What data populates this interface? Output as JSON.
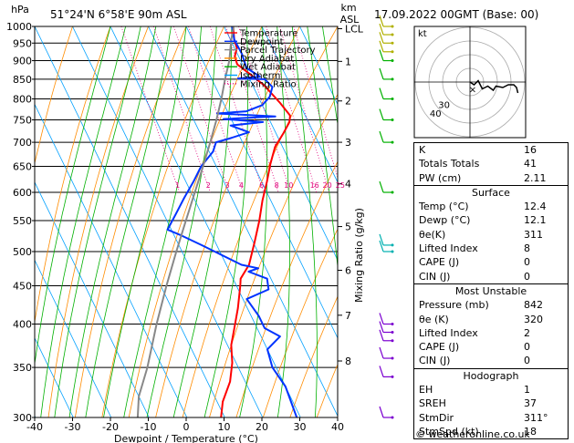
{
  "header": {
    "location": "51°24'N  6°58'E  90m  ASL",
    "datetime": "17.09.2022  00GMT  (Base: 00)",
    "pressure_unit": "hPa",
    "height_unit_top": "km",
    "height_unit_bottom": "ASL"
  },
  "legend": [
    {
      "label": "Temperature",
      "color": "#ff0000",
      "dash": ""
    },
    {
      "label": "Dewpoint",
      "color": "#0033ff",
      "dash": ""
    },
    {
      "label": "Parcel Trajectory",
      "color": "#888888",
      "dash": ""
    },
    {
      "label": "Dry Adiabat",
      "color": "#ff8c00",
      "dash": ""
    },
    {
      "label": "Wet Adiabat",
      "color": "#00b000",
      "dash": ""
    },
    {
      "label": "Isotherm",
      "color": "#00a0ff",
      "dash": ""
    },
    {
      "label": "Mixing Ratio",
      "color": "#e0007a",
      "dash": "1,2"
    }
  ],
  "chart_data": {
    "type": "line",
    "xlabel": "Dewpoint / Temperature (°C)",
    "ylabel": "hPa",
    "right_label": "Mixing Ratio (g/kg)",
    "xlim": [
      -40,
      40
    ],
    "ylim": [
      1000,
      300
    ],
    "y_log": true,
    "x_ticks": [
      -40,
      -30,
      -20,
      -10,
      0,
      10,
      20,
      30,
      40
    ],
    "pressure_levels": [
      300,
      350,
      400,
      450,
      500,
      550,
      600,
      650,
      700,
      750,
      800,
      850,
      900,
      950,
      1000
    ],
    "height_km": [
      {
        "km": "8",
        "p": 357
      },
      {
        "km": "7",
        "p": 411
      },
      {
        "km": "6",
        "p": 472
      },
      {
        "km": "5",
        "p": 540
      },
      {
        "km": "4",
        "p": 616
      },
      {
        "km": "3",
        "p": 700
      },
      {
        "km": "2",
        "p": 795
      },
      {
        "km": "1",
        "p": 898
      },
      {
        "km": "LCL",
        "p": 993
      }
    ],
    "mixing_ratio_labels": [
      "1",
      "2",
      "3",
      "4",
      "6",
      "8",
      "10",
      "16",
      "20",
      "25"
    ],
    "mixing_ratio_values": [
      1,
      2,
      3,
      4,
      6,
      8,
      10,
      16,
      20,
      25
    ],
    "series": [
      {
        "name": "Temperature",
        "color": "#ff0000",
        "points": [
          [
            12.4,
            1000
          ],
          [
            11,
            960
          ],
          [
            10.6,
            935
          ],
          [
            9,
            912
          ],
          [
            8.6,
            890
          ],
          [
            10.6,
            865
          ],
          [
            13,
            835
          ],
          [
            15,
            790
          ],
          [
            16,
            760
          ],
          [
            15,
            745
          ],
          [
            12,
            720
          ],
          [
            8,
            690
          ],
          [
            4.6,
            655
          ],
          [
            1.4,
            620
          ],
          [
            -2.2,
            585
          ],
          [
            -5.6,
            550
          ],
          [
            -9.6,
            515
          ],
          [
            -14,
            480
          ],
          [
            -18,
            460
          ],
          [
            -19,
            450
          ],
          [
            -22.5,
            420
          ],
          [
            -26,
            395
          ],
          [
            -29,
            375
          ],
          [
            -31,
            355
          ],
          [
            -34,
            335
          ],
          [
            -38.5,
            315
          ],
          [
            -41,
            300
          ]
        ]
      },
      {
        "name": "Dewpoint",
        "color": "#0033ff",
        "points": [
          [
            12.1,
            1000
          ],
          [
            11,
            960
          ],
          [
            11.2,
            920
          ],
          [
            10.6,
            880
          ],
          [
            13,
            857
          ],
          [
            7,
            852
          ],
          [
            14,
            850
          ],
          [
            15,
            830
          ],
          [
            13,
            805
          ],
          [
            10,
            785
          ],
          [
            5,
            770
          ],
          [
            -3,
            765
          ],
          [
            12,
            758
          ],
          [
            -2,
            752
          ],
          [
            8,
            745
          ],
          [
            -1,
            737
          ],
          [
            3,
            722
          ],
          [
            -3,
            708
          ],
          [
            -7,
            700
          ],
          [
            -9,
            680
          ],
          [
            -14,
            650
          ],
          [
            -18,
            620
          ],
          [
            -22.5,
            590
          ],
          [
            -27,
            560
          ],
          [
            -31,
            535
          ],
          [
            -28,
            525
          ],
          [
            -24,
            510
          ],
          [
            -16,
            480
          ],
          [
            -12,
            475
          ],
          [
            -15,
            470
          ],
          [
            -11,
            460
          ],
          [
            -12,
            445
          ],
          [
            -19,
            432
          ],
          [
            -18,
            410
          ],
          [
            -18,
            395
          ],
          [
            -15,
            385
          ],
          [
            -20,
            370
          ],
          [
            -21,
            350
          ],
          [
            -20,
            330
          ],
          [
            -21,
            300
          ]
        ]
      },
      {
        "name": "Parcel Trajectory",
        "color": "#888888",
        "points": [
          [
            12.4,
            1000
          ],
          [
            12.2,
            993
          ],
          [
            10.2,
            960
          ],
          [
            7,
            900
          ],
          [
            3.5,
            850
          ],
          [
            0,
            800
          ],
          [
            -4,
            750
          ],
          [
            -8.5,
            700
          ],
          [
            -13.5,
            650
          ],
          [
            -19,
            600
          ],
          [
            -25,
            550
          ],
          [
            -31.5,
            500
          ],
          [
            -38.5,
            450
          ],
          [
            -46,
            400
          ],
          [
            -54,
            350
          ],
          [
            -60,
            320
          ],
          [
            -63,
            300
          ]
        ]
      }
    ],
    "wind_barbs_p": [
      300,
      340,
      360,
      380,
      390,
      400,
      500,
      510,
      600,
      700,
      750,
      800,
      850,
      900,
      925,
      950,
      975,
      1000
    ],
    "skew": {
      "unit": "°C per log-p decade",
      "value": 96
    }
  },
  "hodograph": {
    "unit": "kt",
    "ring_labels": [
      "40",
      "30"
    ],
    "trace_kt": [
      [
        0,
        0
      ],
      [
        3,
        -2
      ],
      [
        6,
        1
      ],
      [
        9,
        -5
      ],
      [
        13,
        -3
      ],
      [
        17,
        -6
      ],
      [
        19,
        -3
      ],
      [
        24,
        -4
      ],
      [
        28,
        -2
      ],
      [
        32,
        -2
      ],
      [
        34,
        -4
      ],
      [
        35,
        -8
      ]
    ],
    "storm_motion_kt": [
      2,
      -5
    ]
  },
  "indices": {
    "general": [
      {
        "label": "K",
        "value": "16"
      },
      {
        "label": "Totals Totals",
        "value": "41"
      },
      {
        "label": "PW (cm)",
        "value": "2.11"
      }
    ],
    "surface_title": "Surface",
    "surface": [
      {
        "label": "Temp (°C)",
        "value": "12.4"
      },
      {
        "label": "Dewp (°C)",
        "value": "12.1"
      },
      {
        "label": "θe(K)",
        "value": "311"
      },
      {
        "label": "Lifted Index",
        "value": "8"
      },
      {
        "label": "CAPE (J)",
        "value": "0"
      },
      {
        "label": "CIN (J)",
        "value": "0"
      }
    ],
    "unstable_title": "Most Unstable",
    "unstable": [
      {
        "label": "Pressure (mb)",
        "value": "842"
      },
      {
        "label": "θe (K)",
        "value": "320"
      },
      {
        "label": "Lifted Index",
        "value": "2"
      },
      {
        "label": "CAPE (J)",
        "value": "0"
      },
      {
        "label": "CIN (J)",
        "value": "0"
      }
    ],
    "hodo_title": "Hodograph",
    "hodo": [
      {
        "label": "EH",
        "value": "1"
      },
      {
        "label": "SREH",
        "value": "37"
      },
      {
        "label": "StmDir",
        "value": "311°"
      },
      {
        "label": "StmSpd (kt)",
        "value": "18"
      }
    ]
  },
  "copyright": "© weatheronline.co.uk"
}
